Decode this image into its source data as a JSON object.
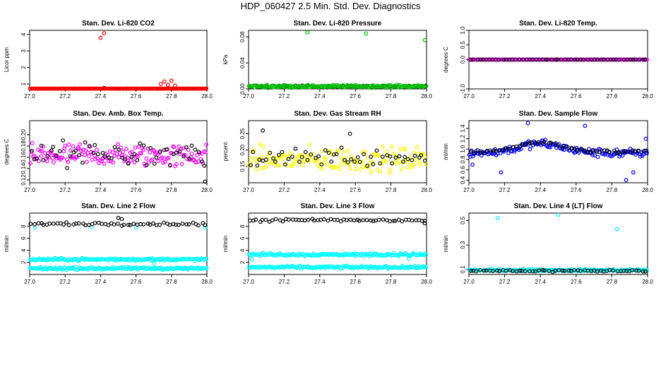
{
  "page_title": "HDP_060427  2.5 Min. Std. Dev. Diagnostics",
  "chart_data": [
    {
      "type": "scatter",
      "title": "Stan. Dev. Li-820 CO2",
      "ylabel": "Licor ppm",
      "xlim": [
        27.0,
        28.0
      ],
      "ylim": [
        0.7,
        4.25
      ],
      "xticks": [
        "27.0",
        "27.2",
        "27.4",
        "27.6",
        "27.8",
        "28.0"
      ],
      "yticks": [
        "1",
        "2",
        "3",
        "4"
      ],
      "series": [
        {
          "color": "#000000",
          "baseline": 0.65,
          "spread": 0.06,
          "extra": [
            [
              27.42,
              0.75
            ],
            [
              27.55,
              0.72
            ],
            [
              27.7,
              0.7
            ]
          ]
        },
        {
          "color": "#ff0000",
          "baseline": 0.6,
          "spread": 0.08,
          "extra": [
            [
              27.4,
              3.8
            ],
            [
              27.42,
              4.08
            ],
            [
              27.74,
              1.0
            ],
            [
              27.76,
              1.15
            ],
            [
              27.78,
              0.95
            ],
            [
              27.8,
              1.2
            ],
            [
              27.82,
              0.9
            ]
          ]
        }
      ]
    },
    {
      "type": "scatter",
      "title": "Stan. Dev. Li-820 Pressure",
      "ylabel": "kPa",
      "xlim": [
        27.0,
        28.0
      ],
      "ylim": [
        0.0,
        0.09
      ],
      "xticks": [
        "27.0",
        "27.2",
        "27.4",
        "27.6",
        "27.8",
        "28.0"
      ],
      "yticks": [
        "0.00",
        "0.04",
        "0.08"
      ],
      "series": [
        {
          "color": "#000000",
          "baseline": 0.004,
          "spread": 0.002,
          "extra": []
        },
        {
          "color": "#00c000",
          "baseline": 0.004,
          "spread": 0.003,
          "extra": [
            [
              27.33,
              0.087
            ],
            [
              27.66,
              0.085
            ],
            [
              27.99,
              0.075
            ]
          ]
        }
      ]
    },
    {
      "type": "scatter",
      "title": "Stan. Dev. Li-820 Temp.",
      "ylabel": "degrees C",
      "xlim": [
        27.0,
        28.0
      ],
      "ylim": [
        -1.0,
        1.0
      ],
      "xticks": [
        "27.0",
        "27.2",
        "27.4",
        "27.6",
        "27.8",
        "28.0"
      ],
      "yticks": [
        "-1.0",
        "0.0",
        "0.5",
        "1.0"
      ],
      "series": [
        {
          "color": "#ff00ff",
          "baseline": 0.0,
          "spread": 0.0,
          "extra": []
        },
        {
          "color": "#000000",
          "baseline": 0.0,
          "spread": 0.0,
          "extra": []
        }
      ]
    },
    {
      "type": "scatter",
      "title": "Stan. Dev. Amb. Box Temp.",
      "ylabel": "degrees C",
      "xlim": [
        27.0,
        28.0
      ],
      "ylim": [
        0.115,
        0.225
      ],
      "xticks": [
        "27.0",
        "27.2",
        "27.4",
        "27.6",
        "27.8",
        "28.0"
      ],
      "yticks": [
        "0.12",
        "0.14",
        "0.16",
        "0.18",
        "0.20"
      ],
      "series": [
        {
          "color": "#ff00ff",
          "baseline": 0.163,
          "spread": 0.03,
          "extra": []
        },
        {
          "color": "#000000",
          "baseline": 0.165,
          "spread": 0.035,
          "extra": [
            [
              27.99,
              0.117
            ]
          ]
        }
      ]
    },
    {
      "type": "scatter",
      "title": "Stan. Dev. Gas Stream RH",
      "ylabel": "percent",
      "xlim": [
        27.0,
        28.0
      ],
      "ylim": [
        0.1,
        0.29
      ],
      "xticks": [
        "27.0",
        "27.2",
        "27.4",
        "27.6",
        "27.8",
        "28.0"
      ],
      "yticks": [
        "0.15",
        "0.20",
        "0.25"
      ],
      "series": [
        {
          "color": "#ffff00",
          "baseline": 0.17,
          "spread": 0.055,
          "extra": []
        },
        {
          "color": "#000000",
          "baseline": 0.18,
          "spread": 0.045,
          "extra": [
            [
              27.08,
              0.26
            ],
            [
              27.57,
              0.25
            ]
          ]
        }
      ]
    },
    {
      "type": "scatter",
      "title": "Stan. Dev. Sample Flow",
      "ylabel": "ml/min",
      "xlim": [
        27.0,
        28.0
      ],
      "ylim": [
        0.35,
        1.55
      ],
      "xticks": [
        "27.0",
        "27.2",
        "27.4",
        "27.6",
        "27.8",
        "28.0"
      ],
      "yticks": [
        "0.4",
        "0.6",
        "0.8",
        "1.0",
        "1.2",
        "1.4"
      ],
      "series": [
        {
          "color": "#0000ff",
          "baseline": 0.92,
          "spread": 0.12,
          "extra": [
            [
              27.33,
              1.5
            ],
            [
              27.65,
              1.45
            ],
            [
              27.18,
              0.55
            ],
            [
              27.92,
              0.55
            ],
            [
              27.88,
              0.4
            ],
            [
              27.99,
              1.2
            ],
            [
              27.02,
              0.7
            ]
          ]
        },
        {
          "color": "#000000",
          "baseline": 0.95,
          "spread": 0.05,
          "extra": []
        }
      ]
    },
    {
      "type": "scatter",
      "title": "Stan. Dev. Line 2 Flow",
      "ylabel": "ml/min",
      "xlim": [
        27.0,
        28.0
      ],
      "ylim": [
        0.0,
        10.2
      ],
      "xticks": [
        "27.0",
        "27.2",
        "27.4",
        "27.6",
        "27.8",
        "28.0"
      ],
      "yticks": [
        "2",
        "4",
        "6",
        "8"
      ],
      "series": [
        {
          "color": "#00ffff",
          "baseline": 2.5,
          "spread": 0.3,
          "extra": [
            [
              27.03,
              7.8
            ],
            [
              27.35,
              7.9
            ],
            [
              27.6,
              7.8
            ],
            [
              27.99,
              7.8
            ]
          ]
        },
        {
          "color": "#00ffff",
          "baseline": 1.0,
          "spread": 0.3,
          "extra": [
            [
              27.7,
              1.8
            ]
          ]
        },
        {
          "color": "#000000",
          "baseline": 8.4,
          "spread": 0.35,
          "extra": [
            [
              27.5,
              9.4
            ],
            [
              27.52,
              9.2
            ]
          ]
        }
      ]
    },
    {
      "type": "scatter",
      "title": "Stan. Dev. Line 3 Flow",
      "ylabel": "ml/min",
      "xlim": [
        27.0,
        28.0
      ],
      "ylim": [
        0.0,
        10.2
      ],
      "xticks": [
        "27.0",
        "27.2",
        "27.4",
        "27.6",
        "27.8",
        "28.0"
      ],
      "yticks": [
        "2",
        "4",
        "6",
        "8"
      ],
      "series": [
        {
          "color": "#00ffff",
          "baseline": 3.3,
          "spread": 0.35,
          "extra": [
            [
              27.02,
              2.5
            ],
            [
              27.9,
              2.6
            ]
          ]
        },
        {
          "color": "#00ffff",
          "baseline": 1.2,
          "spread": 0.3,
          "extra": []
        },
        {
          "color": "#000000",
          "baseline": 9.0,
          "spread": 0.4,
          "extra": [
            [
              27.99,
              8.5
            ]
          ]
        }
      ]
    },
    {
      "type": "scatter",
      "title": "Stan. Dev. Line 4 (LT) Flow",
      "ylabel": "ml/min",
      "xlim": [
        27.0,
        28.0
      ],
      "ylim": [
        0.06,
        0.56
      ],
      "xticks": [
        "27.0",
        "27.2",
        "27.4",
        "27.6",
        "27.8",
        "28.0"
      ],
      "yticks": [
        "0.1",
        "0.3",
        "0.5"
      ],
      "series": [
        {
          "color": "#00ffff",
          "baseline": 0.095,
          "spread": 0.012,
          "extra": [
            [
              27.16,
              0.52
            ],
            [
              27.5,
              0.545
            ],
            [
              27.83,
              0.43
            ]
          ]
        },
        {
          "color": "#000000",
          "baseline": 0.09,
          "spread": 0.012,
          "extra": []
        }
      ]
    }
  ]
}
